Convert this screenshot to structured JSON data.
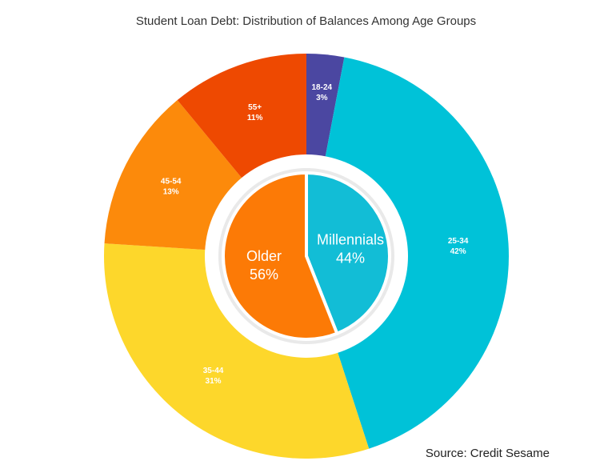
{
  "chart_data": {
    "type": "pie",
    "title": "Student Loan Debt: Distribution of Balances Among Age Groups",
    "source": "Source: Credit Sesame",
    "outer": {
      "slices": [
        {
          "label": "18-24",
          "pct_label": "3%",
          "value": 3,
          "color": "#4b47a1"
        },
        {
          "label": "25-34",
          "pct_label": "42%",
          "value": 42,
          "color": "#00c2d8"
        },
        {
          "label": "35-44",
          "pct_label": "31%",
          "value": 31,
          "color": "#fdd72b"
        },
        {
          "label": "45-54",
          "pct_label": "13%",
          "value": 13,
          "color": "#fc8a0b"
        },
        {
          "label": "55+",
          "pct_label": "11%",
          "value": 11,
          "color": "#ee4901"
        }
      ]
    },
    "inner": {
      "slices": [
        {
          "label": "Millennials",
          "pct_label": "44%",
          "value": 44,
          "color": "#12bdd6"
        },
        {
          "label": "Older",
          "pct_label": "56%",
          "value": 56,
          "color": "#fc7a06"
        }
      ]
    }
  }
}
